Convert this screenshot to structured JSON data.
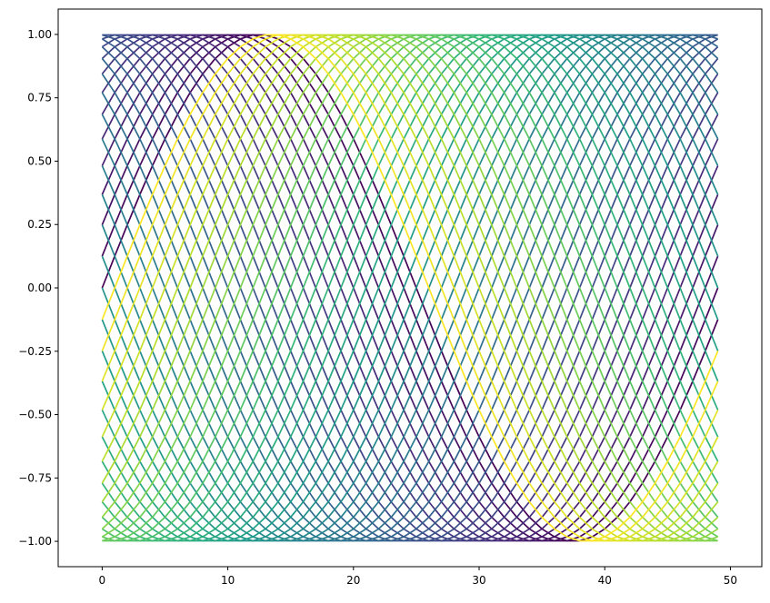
{
  "chart_data": {
    "type": "line",
    "title": "",
    "xlabel": "",
    "ylabel": "",
    "xlim": [
      -3.5,
      52.5
    ],
    "ylim": [
      -1.1,
      1.1
    ],
    "x_ticks": [
      0,
      10,
      20,
      30,
      40,
      50
    ],
    "x_tick_labels": [
      "0",
      "10",
      "20",
      "30",
      "40",
      "50"
    ],
    "y_ticks": [
      -1.0,
      -0.75,
      -0.5,
      -0.25,
      0.0,
      0.25,
      0.5,
      0.75,
      1.0
    ],
    "y_tick_labels": [
      "−1.00",
      "−0.75",
      "−0.50",
      "−0.25",
      "0.00",
      "0.25",
      "0.50",
      "0.75",
      "1.00"
    ],
    "grid": false,
    "legend": "none",
    "x": [
      0,
      1,
      2,
      3,
      4,
      5,
      6,
      7,
      8,
      9,
      10,
      11,
      12,
      13,
      14,
      15,
      16,
      17,
      18,
      19,
      20,
      21,
      22,
      23,
      24,
      25,
      26,
      27,
      28,
      29,
      30,
      31,
      32,
      33,
      34,
      35,
      36,
      37,
      38,
      39,
      40,
      41,
      42,
      43,
      44,
      45,
      46,
      47,
      48,
      49
    ],
    "series_formula": "y_k(x) = sin(2π·(x + k)/50), k = 0 … 49",
    "series_count": 50,
    "colormap": "viridis",
    "colormap_stops": [
      "#440154",
      "#482878",
      "#3e4989",
      "#31688e",
      "#26828e",
      "#1f9e89",
      "#35b779",
      "#6ece58",
      "#b5de2b",
      "#fde725"
    ],
    "axis_color": "#000000",
    "background": "#ffffff"
  }
}
